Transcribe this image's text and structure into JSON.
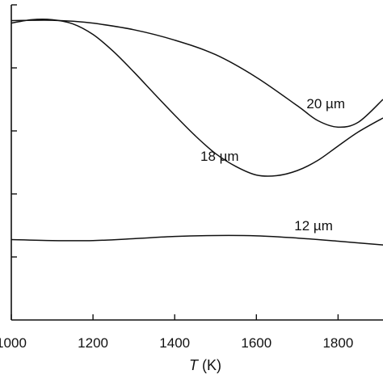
{
  "chart_data": {
    "type": "line",
    "title": "",
    "xlabel_var": "T",
    "xlabel_unit": " (K)",
    "ylabel": "",
    "xlim": [
      1000,
      1910
    ],
    "ylim": [
      0,
      1
    ],
    "xticks": [
      1000,
      1200,
      1400,
      1600,
      1800
    ],
    "xtick_labels": [
      "1000",
      "1200",
      "1400",
      "1600",
      "1800"
    ],
    "yticks": [
      0.2,
      0.4,
      0.6,
      0.8,
      1.0
    ],
    "grid": false,
    "legend": "none",
    "series": [
      {
        "name": "20 µm",
        "x": [
          1000,
          1050,
          1100,
          1150,
          1200,
          1300,
          1400,
          1500,
          1600,
          1700,
          1750,
          1800,
          1850,
          1910
        ],
        "y": [
          0.95,
          0.951,
          0.951,
          0.948,
          0.942,
          0.921,
          0.888,
          0.842,
          0.77,
          0.68,
          0.633,
          0.612,
          0.628,
          0.7
        ]
      },
      {
        "name": "18 µm",
        "x": [
          1000,
          1050,
          1100,
          1150,
          1200,
          1250,
          1300,
          1350,
          1400,
          1450,
          1500,
          1550,
          1600,
          1650,
          1700,
          1750,
          1800,
          1850,
          1910
        ],
        "y": [
          0.942,
          0.953,
          0.953,
          0.94,
          0.906,
          0.852,
          0.787,
          0.718,
          0.65,
          0.585,
          0.528,
          0.487,
          0.46,
          0.458,
          0.474,
          0.506,
          0.552,
          0.597,
          0.641
        ]
      },
      {
        "name": "12 µm",
        "x": [
          1000,
          1100,
          1200,
          1300,
          1400,
          1500,
          1600,
          1700,
          1800,
          1910
        ],
        "y": [
          0.255,
          0.252,
          0.252,
          0.258,
          0.265,
          0.268,
          0.267,
          0.26,
          0.25,
          0.238
        ]
      }
    ],
    "annotations": [
      {
        "text": "20 µm",
        "series": 0,
        "x": 1770,
        "y": 0.672
      },
      {
        "text": "18 µm",
        "series": 1,
        "x": 1510,
        "y": 0.505
      },
      {
        "text": "12 µm",
        "series": 2,
        "x": 1740,
        "y": 0.285
      }
    ]
  }
}
